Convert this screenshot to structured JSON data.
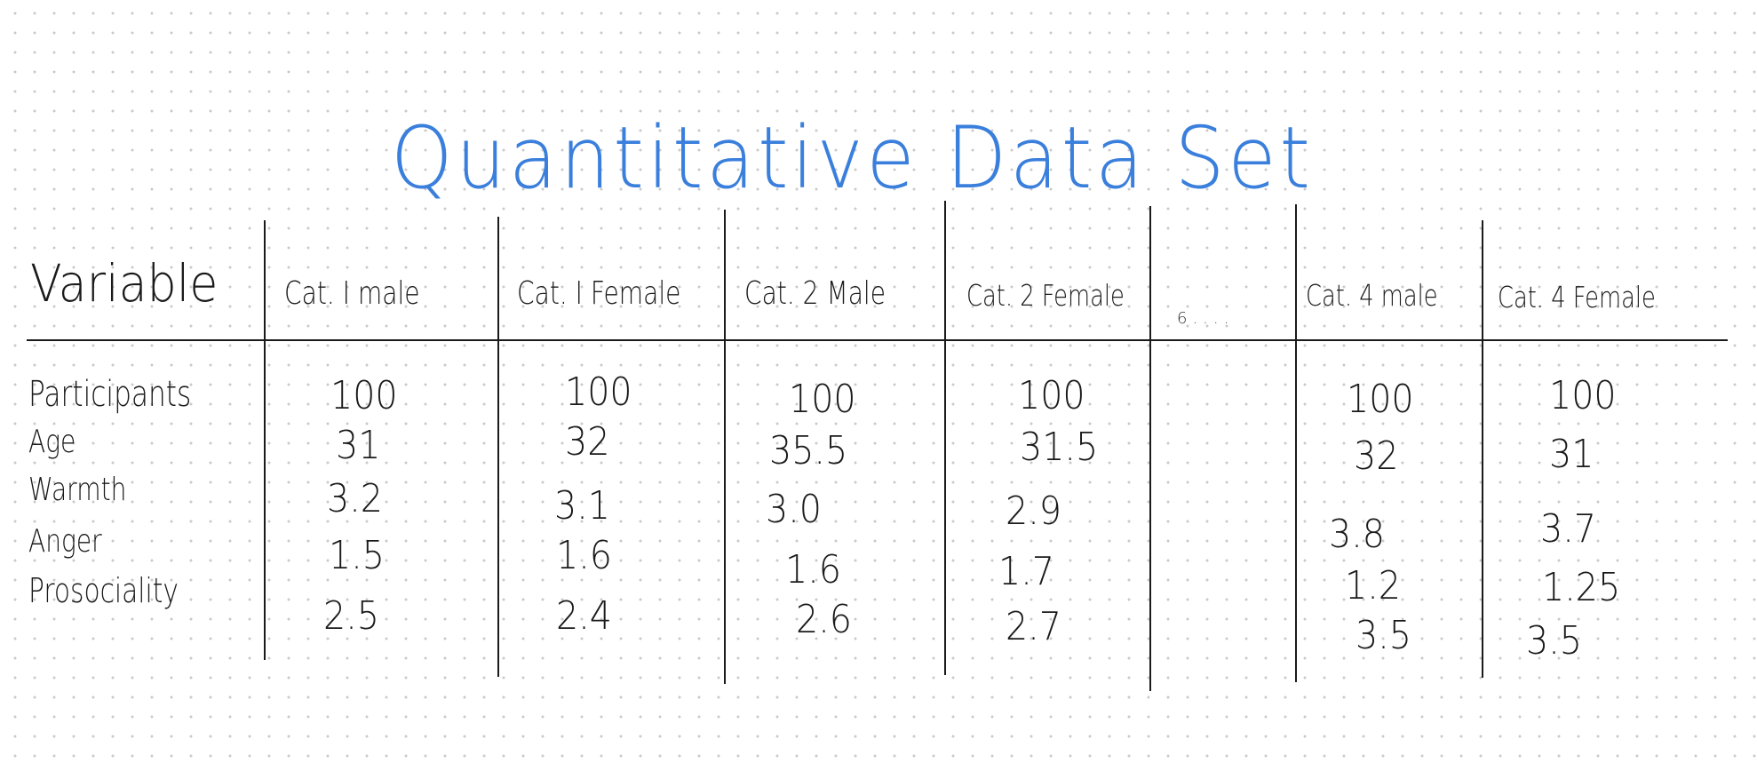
{
  "title": "Quantitative Data Set",
  "header": {
    "variable": "Variable",
    "columns": [
      "Cat. I male",
      "Cat. I Female",
      "Cat. 2 Male",
      "Cat. 2 Female",
      "Cat. 4 male",
      "Cat. 4 Female"
    ],
    "ellipsis": "6...."
  },
  "row_labels": [
    "Participants",
    "Age",
    "Warmth",
    "Anger",
    "Prosociality"
  ],
  "columns": [
    {
      "values": [
        "100",
        "31",
        "3.2",
        "1.5",
        "2.5"
      ]
    },
    {
      "values": [
        "100",
        "32",
        "3.1",
        "1.6",
        "2.4"
      ]
    },
    {
      "values": [
        "100",
        "35.5",
        "3.0",
        "1.6",
        "2.6"
      ]
    },
    {
      "values": [
        "100",
        "31.5",
        "2.9",
        "1.7",
        "2.7"
      ]
    },
    {
      "values": [
        "100",
        "32",
        "3.8",
        "1.2",
        "3.5"
      ]
    },
    {
      "values": [
        "100",
        "31",
        "3.7",
        "1.25",
        "3.5"
      ]
    }
  ],
  "colors": {
    "title": "#3a7fdc",
    "ink": "#1a1a1a",
    "dot_grid": "#c9c9c9"
  }
}
